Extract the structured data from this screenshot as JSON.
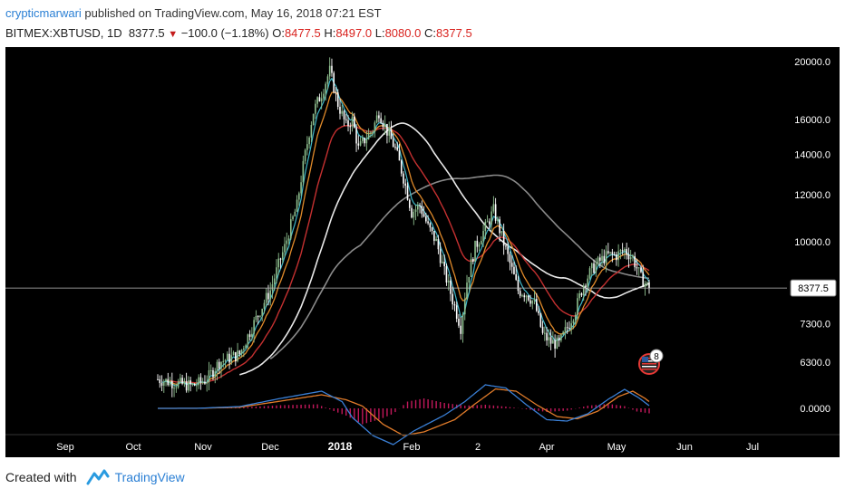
{
  "header": {
    "author": "crypticmarwari",
    "published": " published on TradingView.com, May 16, 2018 07:21 EST",
    "symbol": "BITMEX:XBTUSD, 1D",
    "last": "8377.5",
    "change": "−100.0 (−1.18%)",
    "o_label": "O:",
    "o_val": "8477.5",
    "h_label": "H:",
    "h_val": "8497.0",
    "l_label": "L:",
    "l_val": "8080.0",
    "c_label": "C:",
    "c_val": "8377.5"
  },
  "footer": {
    "created_with": "Created with",
    "brand": "TradingView"
  },
  "colors": {
    "background": "#000000",
    "bull": "#8fbf8f",
    "bear": "#ffffff",
    "ema_fast": "#3fb8c9",
    "ema_mid": "#e08a2a",
    "ema_slow": "#c43030",
    "ma_100": "#e8e8e8",
    "ma_200": "#8a8a8a",
    "macd": "#3a7fd5",
    "signal": "#e07b2a",
    "histogram": "#c2185b"
  },
  "chart_data": {
    "type": "candlestick",
    "y_scale": "log",
    "price_axis_ticks": [
      "20000.0",
      "16000.0",
      "14000.0",
      "12000.0",
      "10000.0",
      "7300.0",
      "6300.0"
    ],
    "price_tick_values": [
      20000,
      16000,
      14000,
      12000,
      10000,
      7300,
      6300
    ],
    "last_price_label": "8377.5",
    "last_price": 8377.5,
    "macd_axis_label": "0.0000",
    "time_axis": [
      "Sep",
      "Oct",
      "Nov",
      "Dec",
      "2018",
      "Feb",
      "2",
      "Apr",
      "May",
      "Jun",
      "Jul"
    ],
    "badge_count": "8",
    "price_path": [
      [
        0,
        5900
      ],
      [
        10,
        5800
      ],
      [
        17,
        5750
      ],
      [
        24,
        5900
      ],
      [
        30,
        6300
      ],
      [
        40,
        6500
      ],
      [
        46,
        7200
      ],
      [
        55,
        8300
      ],
      [
        62,
        9800
      ],
      [
        68,
        11500
      ],
      [
        72,
        14000
      ],
      [
        76,
        16500
      ],
      [
        80,
        17700
      ],
      [
        84,
        19300
      ],
      [
        88,
        17000
      ],
      [
        92,
        15600
      ],
      [
        95,
        16000
      ],
      [
        98,
        14300
      ],
      [
        101,
        14800
      ],
      [
        105,
        15400
      ],
      [
        108,
        16500
      ],
      [
        112,
        15300
      ],
      [
        116,
        14300
      ],
      [
        120,
        12800
      ],
      [
        124,
        11200
      ],
      [
        128,
        11500
      ],
      [
        132,
        10600
      ],
      [
        136,
        10000
      ],
      [
        140,
        8900
      ],
      [
        144,
        8000
      ],
      [
        148,
        7200
      ],
      [
        151,
        8600
      ],
      [
        155,
        9800
      ],
      [
        159,
        10400
      ],
      [
        162,
        10900
      ],
      [
        164,
        11300
      ],
      [
        168,
        10200
      ],
      [
        172,
        9200
      ],
      [
        176,
        8300
      ],
      [
        180,
        8200
      ],
      [
        184,
        7900
      ],
      [
        188,
        7000
      ],
      [
        192,
        6800
      ],
      [
        196,
        6750
      ],
      [
        200,
        7200
      ],
      [
        204,
        7700
      ],
      [
        208,
        8500
      ],
      [
        212,
        9000
      ],
      [
        216,
        9300
      ],
      [
        220,
        9500
      ],
      [
        224,
        9500
      ],
      [
        228,
        9700
      ],
      [
        232,
        9400
      ],
      [
        236,
        8700
      ],
      [
        240,
        8377.5
      ]
    ],
    "macd_path": [
      [
        0,
        0
      ],
      [
        20,
        2
      ],
      [
        40,
        40
      ],
      [
        60,
        220
      ],
      [
        80,
        380
      ],
      [
        90,
        150
      ],
      [
        95,
        -200
      ],
      [
        105,
        -600
      ],
      [
        115,
        -800
      ],
      [
        125,
        -500
      ],
      [
        140,
        -150
      ],
      [
        150,
        150
      ],
      [
        160,
        520
      ],
      [
        170,
        450
      ],
      [
        180,
        80
      ],
      [
        190,
        -250
      ],
      [
        200,
        -280
      ],
      [
        210,
        -120
      ],
      [
        220,
        200
      ],
      [
        228,
        420
      ],
      [
        235,
        230
      ],
      [
        240,
        60
      ]
    ],
    "signal_path": [
      [
        0,
        0
      ],
      [
        20,
        1
      ],
      [
        40,
        25
      ],
      [
        60,
        160
      ],
      [
        80,
        300
      ],
      [
        92,
        190
      ],
      [
        100,
        50
      ],
      [
        110,
        -350
      ],
      [
        120,
        -600
      ],
      [
        130,
        -520
      ],
      [
        145,
        -250
      ],
      [
        155,
        100
      ],
      [
        165,
        430
      ],
      [
        175,
        380
      ],
      [
        185,
        80
      ],
      [
        195,
        -180
      ],
      [
        205,
        -230
      ],
      [
        215,
        -60
      ],
      [
        225,
        260
      ],
      [
        232,
        380
      ],
      [
        238,
        220
      ],
      [
        240,
        150
      ]
    ],
    "hist_path": [
      [
        0,
        0
      ],
      [
        40,
        20
      ],
      [
        60,
        70
      ],
      [
        78,
        90
      ],
      [
        86,
        -60
      ],
      [
        92,
        -160
      ],
      [
        100,
        -350
      ],
      [
        108,
        -250
      ],
      [
        115,
        -120
      ],
      [
        122,
        150
      ],
      [
        130,
        220
      ],
      [
        140,
        120
      ],
      [
        150,
        60
      ],
      [
        160,
        80
      ],
      [
        170,
        40
      ],
      [
        180,
        -20
      ],
      [
        190,
        -80
      ],
      [
        200,
        -50
      ],
      [
        210,
        60
      ],
      [
        220,
        100
      ],
      [
        228,
        50
      ],
      [
        234,
        -70
      ],
      [
        240,
        -110
      ]
    ]
  }
}
